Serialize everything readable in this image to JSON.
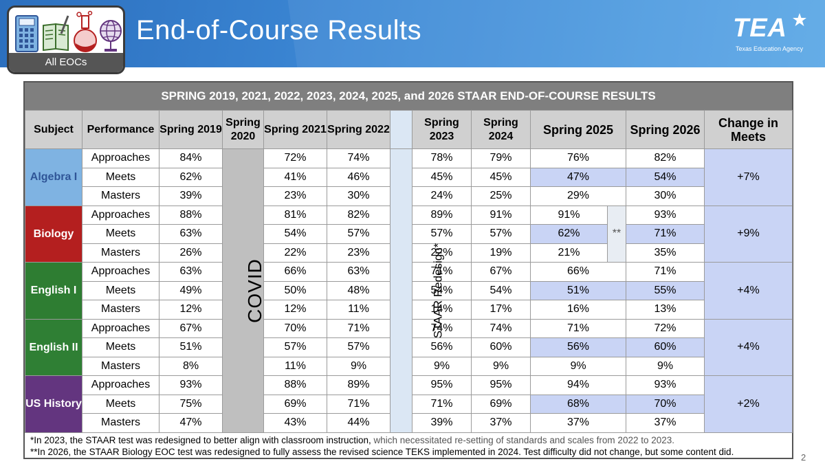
{
  "header": {
    "title": "End-of-Course Results",
    "badge_label": "All EOCs",
    "logo_word": "TEA",
    "logo_sub": "Texas Education Agency"
  },
  "table": {
    "title": "SPRING 2019, 2021, 2022, 2023, 2024, 2025, and 2026 STAAR END-OF-COURSE RESULTS",
    "columns": {
      "subject": "Subject",
      "performance": "Performance",
      "spring2019": "Spring 2019",
      "spring2020": "Spring 2020",
      "spring2021": "Spring 2021",
      "spring2022": "Spring 2022",
      "spring2023": "Spring 2023",
      "spring2024": "Spring 2024",
      "spring2025": "Spring 2025",
      "spring2026": "Spring 2026",
      "change": "Change in Meets"
    },
    "covid_label": "COVID",
    "redesign_label": "STAAR Redesign*",
    "biology_note": "**",
    "subjects": [
      {
        "name": "Algebra I",
        "change": "+7%",
        "rows": [
          {
            "perf": "Approaches",
            "y2019": "84%",
            "y2021": "72%",
            "y2022": "74%",
            "y2023": "78%",
            "y2024": "79%",
            "y2025": "76%",
            "y2026": "82%"
          },
          {
            "perf": "Meets",
            "y2019": "62%",
            "y2021": "41%",
            "y2022": "46%",
            "y2023": "45%",
            "y2024": "45%",
            "y2025": "47%",
            "y2026": "54%"
          },
          {
            "perf": "Masters",
            "y2019": "39%",
            "y2021": "23%",
            "y2022": "30%",
            "y2023": "24%",
            "y2024": "25%",
            "y2025": "29%",
            "y2026": "30%"
          }
        ]
      },
      {
        "name": "Biology",
        "change": "+9%",
        "rows": [
          {
            "perf": "Approaches",
            "y2019": "88%",
            "y2021": "81%",
            "y2022": "82%",
            "y2023": "89%",
            "y2024": "91%",
            "y2025": "91%",
            "y2026": "93%"
          },
          {
            "perf": "Meets",
            "y2019": "63%",
            "y2021": "54%",
            "y2022": "57%",
            "y2023": "57%",
            "y2024": "57%",
            "y2025": "62%",
            "y2026": "71%"
          },
          {
            "perf": "Masters",
            "y2019": "26%",
            "y2021": "22%",
            "y2022": "23%",
            "y2023": "22%",
            "y2024": "19%",
            "y2025": "21%",
            "y2026": "35%"
          }
        ]
      },
      {
        "name": "English I",
        "change": "+4%",
        "rows": [
          {
            "perf": "Approaches",
            "y2019": "63%",
            "y2021": "66%",
            "y2022": "63%",
            "y2023": "71%",
            "y2024": "67%",
            "y2025": "66%",
            "y2026": "71%"
          },
          {
            "perf": "Meets",
            "y2019": "49%",
            "y2021": "50%",
            "y2022": "48%",
            "y2023": "54%",
            "y2024": "54%",
            "y2025": "51%",
            "y2026": "55%"
          },
          {
            "perf": "Masters",
            "y2019": "12%",
            "y2021": "12%",
            "y2022": "11%",
            "y2023": "14%",
            "y2024": "17%",
            "y2025": "16%",
            "y2026": "13%"
          }
        ]
      },
      {
        "name": "English II",
        "change": "+4%",
        "rows": [
          {
            "perf": "Approaches",
            "y2019": "67%",
            "y2021": "70%",
            "y2022": "71%",
            "y2023": "74%",
            "y2024": "74%",
            "y2025": "71%",
            "y2026": "72%"
          },
          {
            "perf": "Meets",
            "y2019": "51%",
            "y2021": "57%",
            "y2022": "57%",
            "y2023": "56%",
            "y2024": "60%",
            "y2025": "56%",
            "y2026": "60%"
          },
          {
            "perf": "Masters",
            "y2019": "8%",
            "y2021": "11%",
            "y2022": "9%",
            "y2023": "9%",
            "y2024": "9%",
            "y2025": "9%",
            "y2026": "9%"
          }
        ]
      },
      {
        "name": "US History",
        "change": "+2%",
        "rows": [
          {
            "perf": "Approaches",
            "y2019": "93%",
            "y2021": "88%",
            "y2022": "89%",
            "y2023": "95%",
            "y2024": "95%",
            "y2025": "94%",
            "y2026": "93%"
          },
          {
            "perf": "Meets",
            "y2019": "75%",
            "y2021": "69%",
            "y2022": "71%",
            "y2023": "71%",
            "y2024": "69%",
            "y2025": "68%",
            "y2026": "70%"
          },
          {
            "perf": "Masters",
            "y2019": "47%",
            "y2021": "43%",
            "y2022": "44%",
            "y2023": "39%",
            "y2024": "37%",
            "y2025": "37%",
            "y2026": "37%"
          }
        ]
      }
    ]
  },
  "footnotes": {
    "note1_main": "*In 2023, the STAAR test was redesigned to better align with classroom instruction,",
    "note1_rest": " which necessitated re-setting of standards and scales from 2022 to 2023.",
    "note2": "**In 2026, the STAAR Biology EOC test was redesigned to fully assess the revised science TEKS implemented in 2024. Test difficulty did not change, but some content did."
  },
  "page_number": "2",
  "colors": {
    "banner": "#3d89d6",
    "algebra": "#7fb3e2",
    "biology": "#b41f1f",
    "english1": "#2e7d32",
    "english2": "#2f7f34",
    "history": "#63357f",
    "highlight": "#c9d4f5",
    "covid": "#bfbfbf",
    "redesign": "#dbe7f4"
  },
  "icons": [
    "calculator-icon",
    "book-icon",
    "flask-icon",
    "globe-icon"
  ]
}
